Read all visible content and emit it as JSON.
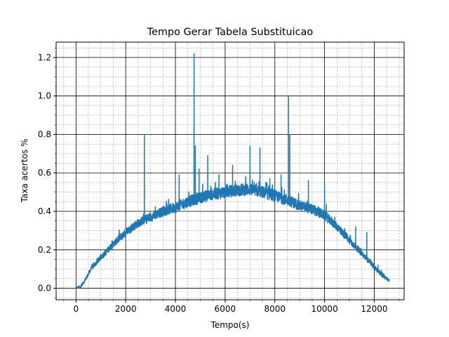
{
  "chart_data": {
    "type": "line",
    "title": "Tempo Gerar Tabela Substituicao",
    "xlabel": "Tempo(s)",
    "ylabel": "Taxa acertos %",
    "xlim": [
      -800,
      13200
    ],
    "ylim": [
      -0.06,
      1.28
    ],
    "x_ticks": [
      0,
      2000,
      4000,
      6000,
      8000,
      10000,
      12000
    ],
    "x_tick_labels": [
      "0",
      "2000",
      "4000",
      "6000",
      "8000",
      "10000",
      "12000"
    ],
    "y_ticks": [
      0.0,
      0.2,
      0.4,
      0.6,
      0.8,
      1.0,
      1.2
    ],
    "y_tick_labels": [
      "0.0",
      "0.2",
      "0.4",
      "0.6",
      "0.8",
      "1.0",
      "1.2"
    ],
    "x_minor_step": 500,
    "y_minor_step": 0.05,
    "grid": "major and minor",
    "series": [
      {
        "color": "#1f77b4",
        "envelope": {
          "x": [
            0,
            200,
            400,
            600,
            800,
            1000,
            1500,
            2000,
            2500,
            3000,
            3500,
            4000,
            4500,
            5000,
            5500,
            6000,
            6500,
            7000,
            7500,
            8000,
            8500,
            9000,
            9500,
            10000,
            10500,
            11000,
            11500,
            12000,
            12300,
            12600
          ],
          "y": [
            0.0,
            0.01,
            0.05,
            0.1,
            0.13,
            0.16,
            0.23,
            0.29,
            0.34,
            0.37,
            0.4,
            0.42,
            0.45,
            0.47,
            0.49,
            0.5,
            0.51,
            0.515,
            0.5,
            0.48,
            0.46,
            0.43,
            0.41,
            0.38,
            0.32,
            0.25,
            0.18,
            0.11,
            0.07,
            0.04
          ]
        },
        "spikes": [
          {
            "x": 2750,
            "y": 0.8
          },
          {
            "x": 4150,
            "y": 0.59
          },
          {
            "x": 4750,
            "y": 1.22
          },
          {
            "x": 4800,
            "y": 0.74
          },
          {
            "x": 4950,
            "y": 0.62
          },
          {
            "x": 5300,
            "y": 0.69
          },
          {
            "x": 5750,
            "y": 0.59
          },
          {
            "x": 6300,
            "y": 0.64
          },
          {
            "x": 7000,
            "y": 0.74
          },
          {
            "x": 7400,
            "y": 0.73
          },
          {
            "x": 7800,
            "y": 0.57
          },
          {
            "x": 8250,
            "y": 0.59
          },
          {
            "x": 8550,
            "y": 1.0
          },
          {
            "x": 8600,
            "y": 0.8
          },
          {
            "x": 9350,
            "y": 0.56
          },
          {
            "x": 10000,
            "y": 0.54
          },
          {
            "x": 11250,
            "y": 0.32
          },
          {
            "x": 11700,
            "y": 0.29
          },
          {
            "x": 12150,
            "y": 0.12
          }
        ]
      }
    ]
  }
}
